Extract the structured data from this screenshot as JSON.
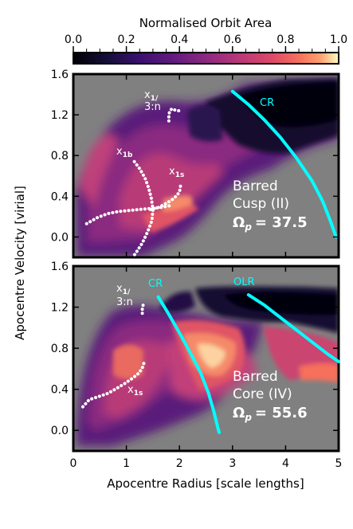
{
  "chart_data": [
    {
      "type": "heatmap",
      "panel": "top",
      "title": "",
      "xlabel": "Apocentre Radius [scale lengths]",
      "ylabel": "Apocentre Velocity [virial]",
      "xlim": [
        0,
        5
      ],
      "ylim": [
        -0.2,
        1.6
      ],
      "xticks": [
        "0",
        "1",
        "2",
        "3",
        "4",
        "5"
      ],
      "yticks": [
        "0.0",
        "0.4",
        "0.8",
        "1.2",
        "1.6"
      ],
      "colorbar": {
        "label": "Normalised Orbit Area",
        "range": [
          0,
          1
        ],
        "ticks": [
          "0.0",
          "0.2",
          "0.4",
          "0.6",
          "0.8",
          "1.0"
        ],
        "colormap": "magma"
      },
      "annotation_title": "Barred",
      "annotation_subtitle": "Cusp (II)",
      "omega_label": "Ω",
      "omega_sub": "p",
      "omega_value": "= 37.5",
      "resonance_labels": [
        {
          "main": "x",
          "sub": "1/",
          "text": "3:n",
          "x": 1.55,
          "y": 1.38
        },
        {
          "main": "x",
          "sub": "1b",
          "x": 0.85,
          "y": 0.82
        },
        {
          "main": "x",
          "sub": "1s",
          "x": 1.8,
          "y": 0.61
        }
      ],
      "lines": [
        {
          "name": "CR",
          "color": "#00ffff",
          "x": [
            3.0,
            3.3,
            3.6,
            3.9,
            4.2,
            4.5,
            4.7,
            4.85,
            4.95
          ],
          "y": [
            1.43,
            1.3,
            1.15,
            0.98,
            0.78,
            0.55,
            0.35,
            0.15,
            0.0
          ]
        }
      ],
      "orbit_families": [
        {
          "name": "x1/ 3:n",
          "x": [
            1.8,
            1.8,
            1.82,
            1.86,
            1.9,
            1.95,
            2.02
          ],
          "y": [
            1.14,
            1.2,
            1.24,
            1.26,
            1.25,
            1.24,
            1.24
          ]
        },
        {
          "name": "x1b",
          "x": [
            1.15,
            1.25,
            1.35,
            1.42,
            1.47,
            1.5,
            1.48,
            1.4,
            1.3,
            1.2,
            1.12
          ],
          "y": [
            0.74,
            0.67,
            0.58,
            0.48,
            0.38,
            0.27,
            0.16,
            0.05,
            -0.06,
            -0.14,
            -0.2
          ]
        },
        {
          "name": "x1b-low",
          "x": [
            0.25,
            0.45,
            0.65,
            0.85,
            1.05,
            1.25,
            1.45,
            1.65,
            1.85
          ],
          "y": [
            0.13,
            0.19,
            0.23,
            0.25,
            0.26,
            0.27,
            0.28,
            0.29,
            0.31
          ]
        },
        {
          "name": "x1s",
          "x": [
            1.45,
            1.6,
            1.75,
            1.9,
            2.0,
            2.02
          ],
          "y": [
            0.27,
            0.29,
            0.33,
            0.38,
            0.44,
            0.5
          ]
        }
      ]
    },
    {
      "type": "heatmap",
      "panel": "bottom",
      "title": "",
      "xlabel": "Apocentre Radius [scale lengths]",
      "ylabel": "Apocentre Velocity [virial]",
      "xlim": [
        0,
        5
      ],
      "ylim": [
        -0.2,
        1.6
      ],
      "xticks": [
        "0",
        "1",
        "2",
        "3",
        "4",
        "5"
      ],
      "yticks": [
        "0.0",
        "0.4",
        "0.8",
        "1.2",
        "1.6"
      ],
      "annotation_title": "Barred",
      "annotation_subtitle": "Core (IV)",
      "omega_label": "Ω",
      "omega_sub": "p",
      "omega_value": "= 55.6",
      "resonance_labels": [
        {
          "main": "x",
          "sub": "1/",
          "text": "3:n",
          "x": 0.4,
          "y": 1.38
        },
        {
          "main": "x",
          "sub": "1s",
          "x": 1.02,
          "y": 0.45
        }
      ],
      "lines": [
        {
          "name": "CR",
          "color": "#00ffff",
          "x": [
            1.6,
            1.8,
            2.0,
            2.2,
            2.4,
            2.55,
            2.65,
            2.72,
            2.75
          ],
          "y": [
            1.3,
            1.13,
            0.95,
            0.76,
            0.56,
            0.36,
            0.18,
            0.03,
            -0.02
          ]
        },
        {
          "name": "OLR",
          "color": "#00ffff",
          "x": [
            3.3,
            3.6,
            3.9,
            4.2,
            4.5,
            4.8,
            5.0
          ],
          "y": [
            1.32,
            1.22,
            1.1,
            0.98,
            0.86,
            0.74,
            0.67
          ]
        }
      ],
      "orbit_families": [
        {
          "name": "x1/ 3:n",
          "x": [
            1.3,
            1.3,
            1.32
          ],
          "y": [
            1.14,
            1.19,
            1.23
          ]
        },
        {
          "name": "x1s",
          "x": [
            0.18,
            0.3,
            0.48,
            0.65,
            0.82,
            0.98,
            1.12,
            1.24,
            1.3,
            1.34
          ],
          "y": [
            0.23,
            0.3,
            0.33,
            0.36,
            0.41,
            0.46,
            0.51,
            0.56,
            0.61,
            0.67
          ]
        }
      ]
    }
  ]
}
